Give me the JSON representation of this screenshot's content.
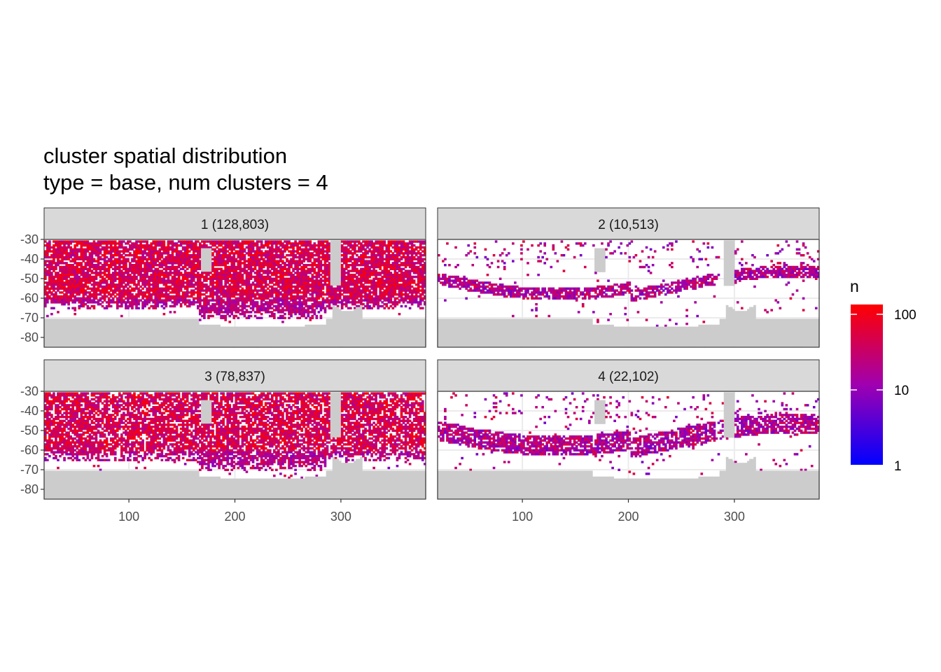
{
  "chart_data": {
    "type": "heatmap",
    "title": "cluster spatial distribution",
    "subtitle": "type = base, num clusters = 4",
    "xlabel": "",
    "ylabel": "",
    "x_ticks": [
      100,
      200,
      300
    ],
    "y_ticks": [
      -30,
      -40,
      -50,
      -60,
      -70,
      -80
    ],
    "xlim": [
      20,
      380
    ],
    "ylim": [
      -85,
      -30
    ],
    "grid": true,
    "legend": {
      "title": "n",
      "scale": "log10",
      "ticks": [
        "100",
        "10",
        "1"
      ],
      "low_color": "#0000ff",
      "mid_color": "#a000b0",
      "high_color": "#ff0000",
      "placement": "right"
    },
    "panels": [
      {
        "label": "1 (128,803)",
        "cluster": 1,
        "count": 128803
      },
      {
        "label": "2 (10,513)",
        "cluster": 2,
        "count": 10513
      },
      {
        "label": "3 (78,837)",
        "cluster": 3,
        "count": 78837
      },
      {
        "label": "4 (22,102)",
        "cluster": 4,
        "count": 22102
      }
    ],
    "land_color": "#cccccc",
    "strip_color": "#d9d9d9"
  }
}
